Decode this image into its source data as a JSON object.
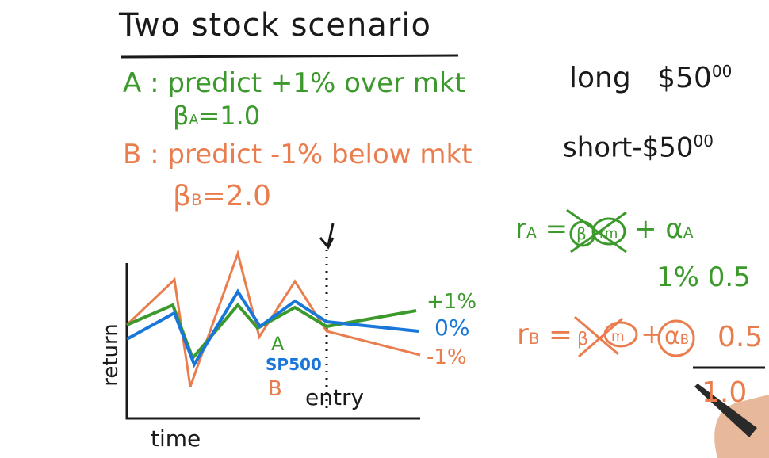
{
  "title": "Two stock scenario",
  "stock_a": {
    "line": "A : predict +1% over mkt",
    "beta": "β",
    "beta_sub": "A",
    "beta_val": "=1.0"
  },
  "stock_b": {
    "line": "B : predict -1% below mkt",
    "beta": "β",
    "beta_sub": "B",
    "beta_val": "=2.0"
  },
  "positions": {
    "long": "long",
    "long_amount": "$50",
    "long_cents": "00",
    "short": "short",
    "short_amount": "-$50",
    "short_cents": "00"
  },
  "chart": {
    "ylabel": "return",
    "xlabel": "time",
    "entry_label": "entry",
    "end_labels": {
      "plus": "+1%",
      "zero": "0%",
      "minus": "-1%"
    },
    "series_labels": {
      "a": "A",
      "spx": "SP500",
      "b": "B"
    }
  },
  "formulas": {
    "ra_lhs": "r",
    "ra_sub": "A",
    "ra_eq": "=",
    "ra_plus": "+",
    "ra_alpha": "α",
    "ra_alpha_sub": "A",
    "ra_values": "1%  0.5",
    "rb_lhs": "r",
    "rb_sub": "B",
    "rb_eq": "=",
    "rb_plus": "+",
    "rb_alpha": "α",
    "rb_alpha_sub": "B",
    "rb_value": "0.5",
    "total": "1.0"
  },
  "colors": {
    "black": "#1a1a1a",
    "green": "#3c9a2c",
    "orange": "#ea7d4e",
    "blue": "#1877d8"
  }
}
